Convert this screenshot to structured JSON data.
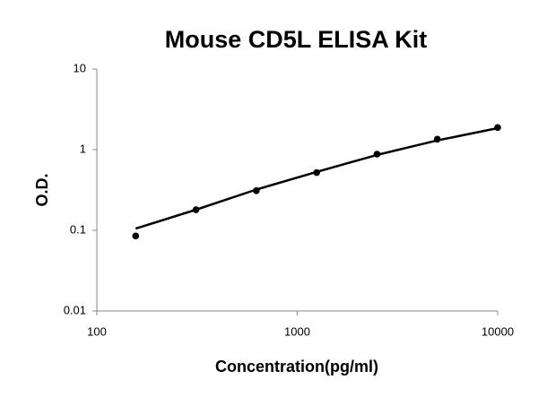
{
  "chart_data": {
    "type": "scatter",
    "title": "Mouse CD5L ELISA Kit",
    "x_label": "Concentration(pg/ml)",
    "y_label": "O.D.",
    "log_x": true,
    "log_y": true,
    "grid": false,
    "x": [
      156.25,
      312.5,
      625,
      1250,
      2500,
      5000,
      10000
    ],
    "series": [
      {
        "color": "#000000",
        "values": [
          0.085,
          0.18,
          0.31,
          0.52,
          0.88,
          1.35,
          1.88
        ]
      },
      {
        "color": "#000000",
        "values": [
          0.105,
          0.18,
          0.32,
          0.53,
          0.86,
          1.3,
          1.85
        ],
        "line": true
      }
    ],
    "xlim": [
      100,
      10000
    ],
    "xticks": [
      100,
      1000,
      10000
    ],
    "ylim": [
      0.01,
      10
    ],
    "yticks": [
      0.01,
      0.1,
      1,
      10
    ]
  }
}
